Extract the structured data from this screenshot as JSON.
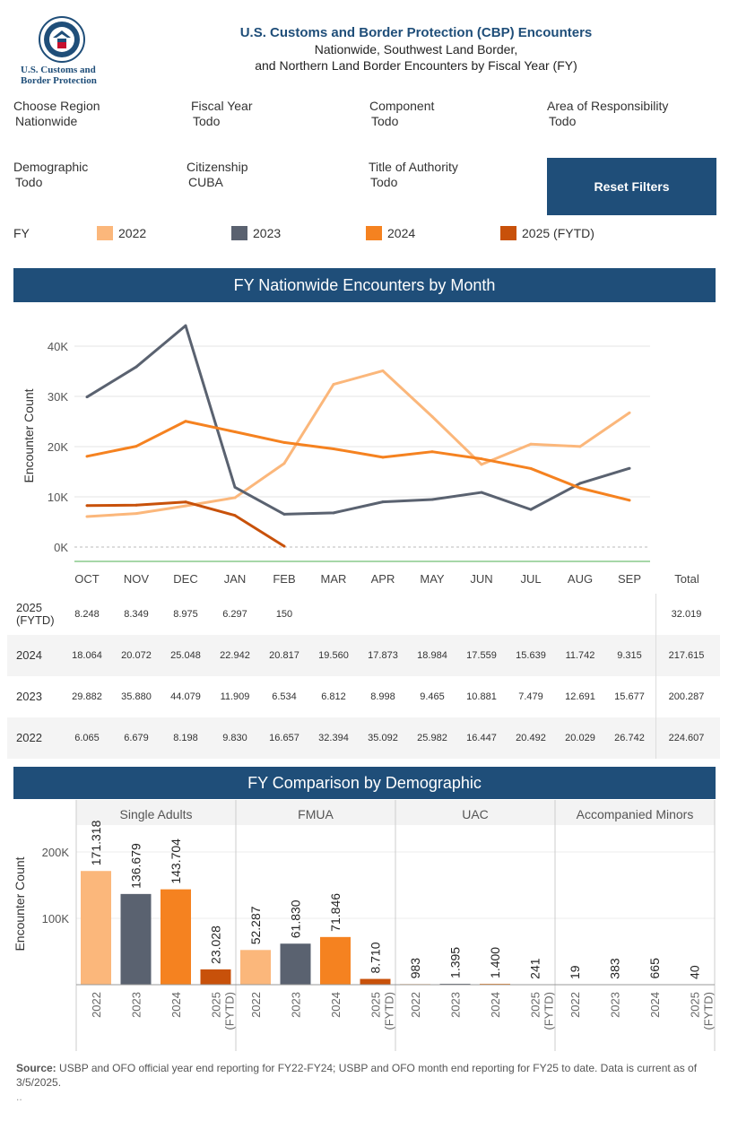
{
  "header": {
    "logo_text": "U.S. Customs and Border Protection",
    "title": "U.S. Customs and Border Protection (CBP) Encounters",
    "subtitle1": "Nationwide, Southwest Land Border,",
    "subtitle2": "and Northern Land Border Encounters by Fiscal Year (FY)"
  },
  "filters": {
    "region": {
      "label": "Choose Region",
      "value": "Nationwide"
    },
    "fiscal_year": {
      "label": "Fiscal Year",
      "value": "Todo"
    },
    "component": {
      "label": "Component",
      "value": "Todo"
    },
    "aor": {
      "label": "Area of Responsibility",
      "value": "Todo"
    },
    "demographic": {
      "label": "Demographic",
      "value": "Todo"
    },
    "citizenship": {
      "label": "Citizenship",
      "value": "CUBA"
    },
    "authority": {
      "label": "Title of Authority",
      "value": "Todo"
    },
    "reset_label": "Reset Filters"
  },
  "legend": {
    "label": "FY",
    "items": [
      {
        "name": "2022",
        "color": "#fbb77b"
      },
      {
        "name": "2023",
        "color": "#5a6270"
      },
      {
        "name": "2024",
        "color": "#f58220"
      },
      {
        "name": "2025 (FYTD)",
        "color": "#c8510a"
      }
    ]
  },
  "sections": {
    "monthly_title": "FY Nationwide Encounters by Month",
    "demo_title": "FY Comparison by Demographic"
  },
  "table": {
    "total_label": "Total",
    "rows": [
      {
        "label": "2025\n(FYTD)",
        "values": [
          "8.248",
          "8.349",
          "8.975",
          "6.297",
          "150",
          "",
          "",
          "",
          "",
          "",
          "",
          ""
        ],
        "total": "32.019"
      },
      {
        "label": "2024",
        "values": [
          "18.064",
          "20.072",
          "25.048",
          "22.942",
          "20.817",
          "19.560",
          "17.873",
          "18.984",
          "17.559",
          "15.639",
          "11.742",
          "9.315"
        ],
        "total": "217.615"
      },
      {
        "label": "2023",
        "values": [
          "29.882",
          "35.880",
          "44.079",
          "11.909",
          "6.534",
          "6.812",
          "8.998",
          "9.465",
          "10.881",
          "7.479",
          "12.691",
          "15.677"
        ],
        "total": "200.287"
      },
      {
        "label": "2022",
        "values": [
          "6.065",
          "6.679",
          "8.198",
          "9.830",
          "16.657",
          "32.394",
          "35.092",
          "25.982",
          "16.447",
          "20.492",
          "20.029",
          "26.742"
        ],
        "total": "224.607"
      }
    ]
  },
  "chart_data": [
    {
      "type": "line",
      "title": "FY Nationwide Encounters by Month",
      "ylabel": "Encounter Count",
      "ylim": [
        0,
        45000
      ],
      "yticks": [
        "0K",
        "10K",
        "20K",
        "30K",
        "40K"
      ],
      "grid": true,
      "categories": [
        "OCT",
        "NOV",
        "DEC",
        "JAN",
        "FEB",
        "MAR",
        "APR",
        "MAY",
        "JUN",
        "JUL",
        "AUG",
        "SEP"
      ],
      "series": [
        {
          "name": "2022",
          "color": "#fbb77b",
          "values": [
            6065,
            6679,
            8198,
            9830,
            16657,
            32394,
            35092,
            25982,
            16447,
            20492,
            20029,
            26742
          ]
        },
        {
          "name": "2023",
          "color": "#5a6270",
          "values": [
            29882,
            35880,
            44079,
            11909,
            6534,
            6812,
            8998,
            9465,
            10881,
            7479,
            12691,
            15677
          ]
        },
        {
          "name": "2024",
          "color": "#f58220",
          "values": [
            18064,
            20072,
            25048,
            22942,
            20817,
            19560,
            17873,
            18984,
            17559,
            15639,
            11742,
            9315
          ]
        },
        {
          "name": "2025 (FYTD)",
          "color": "#c8510a",
          "values": [
            8248,
            8349,
            8975,
            6297,
            150,
            null,
            null,
            null,
            null,
            null,
            null,
            null
          ]
        }
      ]
    },
    {
      "type": "bar",
      "title": "FY Comparison by Demographic",
      "ylabel": "Encounter Count",
      "ylim": [
        0,
        220000
      ],
      "yticks": [
        "100K",
        "200K"
      ],
      "groups": [
        {
          "name": "Single Adults",
          "values": [
            171318,
            136679,
            143704,
            23028
          ],
          "labels": [
            "171.318",
            "136.679",
            "143.704",
            "23.028"
          ]
        },
        {
          "name": "FMUA",
          "values": [
            52287,
            61830,
            71846,
            8710
          ],
          "labels": [
            "52.287",
            "61.830",
            "71.846",
            "8.710"
          ]
        },
        {
          "name": "UAC",
          "values": [
            983,
            1395,
            1400,
            241
          ],
          "labels": [
            "983",
            "1.395",
            "1.400",
            "241"
          ]
        },
        {
          "name": "Accompanied Minors",
          "values": [
            19,
            383,
            665,
            40
          ],
          "labels": [
            "19",
            "383",
            "665",
            "40"
          ]
        }
      ],
      "categories": [
        "2022",
        "2023",
        "2024",
        "2025\n(FYTD)"
      ],
      "colors": [
        "#fbb77b",
        "#5a6270",
        "#f58220",
        "#c8510a"
      ]
    }
  ],
  "source": {
    "label": "Source:",
    "text": " USBP and OFO official year end reporting for FY22-FY24; USBP and OFO month end reporting for FY25 to date. Data is current as of 3/5/2025.",
    "ellipsis": ".."
  }
}
